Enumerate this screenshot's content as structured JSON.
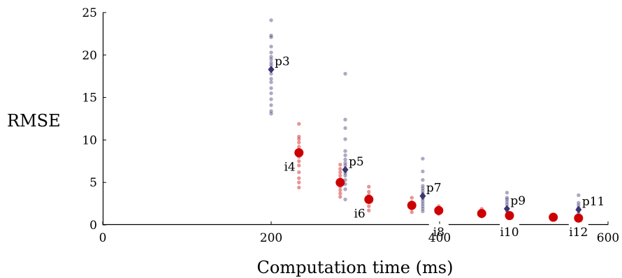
{
  "chart_data": {
    "type": "scatter",
    "title": "",
    "xlabel": "Computation time (ms)",
    "ylabel": "RMSE",
    "xlim": [
      0,
      600
    ],
    "ylim": [
      0,
      25
    ],
    "xticks": [
      0,
      200,
      400,
      600
    ],
    "yticks": [
      0,
      5,
      10,
      15,
      20,
      25
    ],
    "grid": false,
    "colors": {
      "p": "#3b3570",
      "i": "#cc0000"
    },
    "series": [
      {
        "group": "p",
        "points": [
          {
            "label": "p3",
            "x": 200,
            "y": 18.3,
            "samples": [
              13.1,
              13.4,
              14.1,
              14.8,
              15.5,
              16.1,
              16.8,
              17.2,
              17.8,
              18.3,
              18.8,
              19.1,
              19.5,
              19.8,
              20.3,
              21.0,
              22.1,
              22.3,
              24.1
            ]
          },
          {
            "label": "p5",
            "x": 288,
            "y": 6.5,
            "samples": [
              3.0,
              4.2,
              4.8,
              5.3,
              5.8,
              6.1,
              6.6,
              7.0,
              7.3,
              7.7,
              8.2,
              8.7,
              10.1,
              11.4,
              12.4,
              17.8
            ]
          },
          {
            "label": "p7",
            "x": 380,
            "y": 3.4,
            "samples": [
              1.6,
              1.9,
              2.2,
              2.5,
              2.8,
              3.1,
              3.4,
              3.7,
              4.0,
              4.3,
              4.6,
              5.3,
              6.3,
              7.8
            ]
          },
          {
            "label": "p9",
            "x": 480,
            "y": 1.9,
            "samples": [
              1.2,
              1.6,
              2.0,
              2.4,
              2.7,
              3.0,
              3.2,
              3.8
            ]
          },
          {
            "label": "p11",
            "x": 565,
            "y": 1.8,
            "samples": [
              1.1,
              1.4,
              1.7,
              2.0,
              2.3,
              2.6,
              3.5
            ]
          }
        ]
      },
      {
        "group": "i",
        "points": [
          {
            "label": "i4",
            "x": 233,
            "y": 8.5,
            "samples": [
              4.4,
              5.0,
              5.5,
              6.2,
              7.0,
              7.5,
              8.0,
              8.6,
              9.2,
              9.7,
              10.1,
              10.4,
              11.9
            ]
          },
          {
            "label": "",
            "x": 282,
            "y": 5.0,
            "samples": [
              3.3,
              3.7,
              4.1,
              4.5,
              5.0,
              5.4,
              5.8,
              6.2,
              6.6,
              7.1
            ]
          },
          {
            "label": "i6",
            "x": 316,
            "y": 3.0,
            "samples": [
              1.7,
              2.2,
              2.7,
              3.1,
              3.5,
              3.9,
              4.5
            ]
          },
          {
            "label": "",
            "x": 367,
            "y": 2.3,
            "samples": [
              1.5,
              1.9,
              2.3,
              2.7,
              3.2
            ]
          },
          {
            "label": "i8",
            "x": 399,
            "y": 1.7,
            "samples": [
              1.3,
              1.6,
              1.9,
              2.2
            ]
          },
          {
            "label": "",
            "x": 450,
            "y": 1.35,
            "samples": [
              1.0,
              1.3,
              1.6,
              1.9
            ]
          },
          {
            "label": "i10",
            "x": 483,
            "y": 1.1,
            "samples": [
              0.8,
              1.0,
              1.3
            ]
          },
          {
            "label": "",
            "x": 535,
            "y": 0.9,
            "samples": [
              0.7,
              0.9,
              1.1
            ]
          },
          {
            "label": "i12",
            "x": 565,
            "y": 0.8,
            "samples": [
              0.6,
              0.8,
              1.0
            ]
          }
        ]
      }
    ]
  }
}
